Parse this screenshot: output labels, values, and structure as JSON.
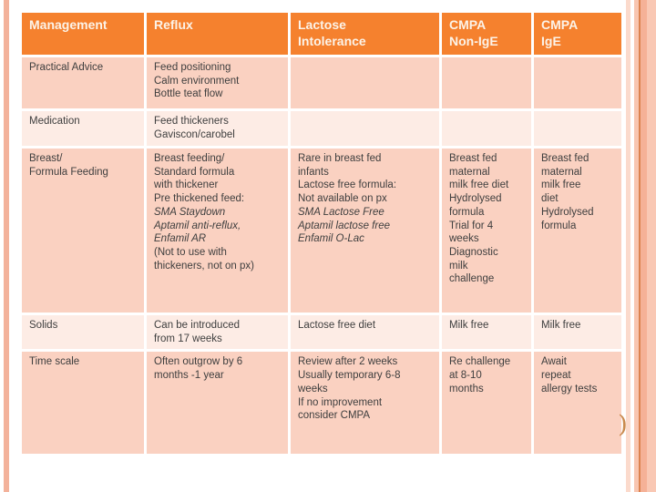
{
  "slide": {
    "background": "#FFFFFF",
    "decor": {
      "left_stripe_color": "#F3B29B",
      "right_stripe_colors": [
        "#FBDACC",
        "#F8C6B1",
        "#DC8350",
        "#F5B197",
        "#F9C8B4"
      ],
      "corner_glyph": ")",
      "corner_glyph_color": "#C98A4E"
    }
  },
  "table": {
    "header": {
      "bg": "#F5812E",
      "text_color": "#FCF3E8",
      "keys": [
        "management",
        "reflux",
        "lactose-intolerance",
        "cmpa-non-ige",
        "cmpa-ige"
      ],
      "columns": [
        "Management",
        "Reflux",
        "Lactose\nIntolerance",
        "CMPA\nNon-IgE",
        "CMPA\nIgE"
      ]
    },
    "row_shades": {
      "dark": "#FAD1C1",
      "light": "#FDECE5"
    },
    "text_color": "#3E3E3E",
    "rows": [
      {
        "key": "practical-advice",
        "shade": "dark",
        "cells": [
          [
            {
              "text": "Practical Advice"
            }
          ],
          [
            {
              "text": "Feed positioning\nCalm environment\nBottle teat flow"
            }
          ],
          [],
          [],
          []
        ]
      },
      {
        "key": "medication",
        "shade": "light",
        "cells": [
          [
            {
              "text": "Medication"
            }
          ],
          [
            {
              "text": "Feed thickeners\nGaviscon/carobel"
            }
          ],
          [],
          [],
          []
        ]
      },
      {
        "key": "breast-formula-feeding",
        "shade": "dark",
        "cells": [
          [
            {
              "text": "Breast/\nFormula Feeding"
            }
          ],
          [
            {
              "text": "Breast feeding/\nStandard formula\nwith thickener\nPre thickened feed:"
            },
            {
              "text": "SMA Staydown\nAptamil anti-reflux,\nEnfamil AR",
              "italic": true
            },
            {
              "text": "(Not to use with\nthickeners, not on px)"
            }
          ],
          [
            {
              "text": "Rare in breast fed\ninfants\nLactose free formula:\nNot available on px"
            },
            {
              "text": "SMA Lactose Free\nAptamil lactose free\nEnfamil O-Lac",
              "italic": true
            }
          ],
          [
            {
              "text": "Breast fed\nmaternal\nmilk free diet\nHydrolysed\nformula\nTrial for 4\nweeks\nDiagnostic\nmilk\nchallenge"
            }
          ],
          [
            {
              "text": "Breast fed\nmaternal\nmilk free\ndiet\nHydrolysed\nformula"
            }
          ]
        ]
      },
      {
        "key": "solids",
        "shade": "light",
        "cells": [
          [
            {
              "text": "Solids"
            }
          ],
          [
            {
              "text": "Can be introduced\nfrom 17 weeks"
            }
          ],
          [
            {
              "text": "Lactose free diet"
            }
          ],
          [
            {
              "text": "Milk free"
            }
          ],
          [
            {
              "text": "Milk free"
            }
          ]
        ]
      },
      {
        "key": "time-scale",
        "shade": "dark",
        "cells": [
          [
            {
              "text": "Time scale"
            }
          ],
          [
            {
              "text": "Often outgrow by 6\nmonths -1 year"
            }
          ],
          [
            {
              "text": "Review after 2 weeks\nUsually temporary 6-8\nweeks\nIf no improvement\nconsider CMPA"
            }
          ],
          [
            {
              "text": "Re challenge\nat 8-10\nmonths"
            }
          ],
          [
            {
              "text": "Await\nrepeat\nallergy tests"
            }
          ]
        ]
      }
    ]
  }
}
